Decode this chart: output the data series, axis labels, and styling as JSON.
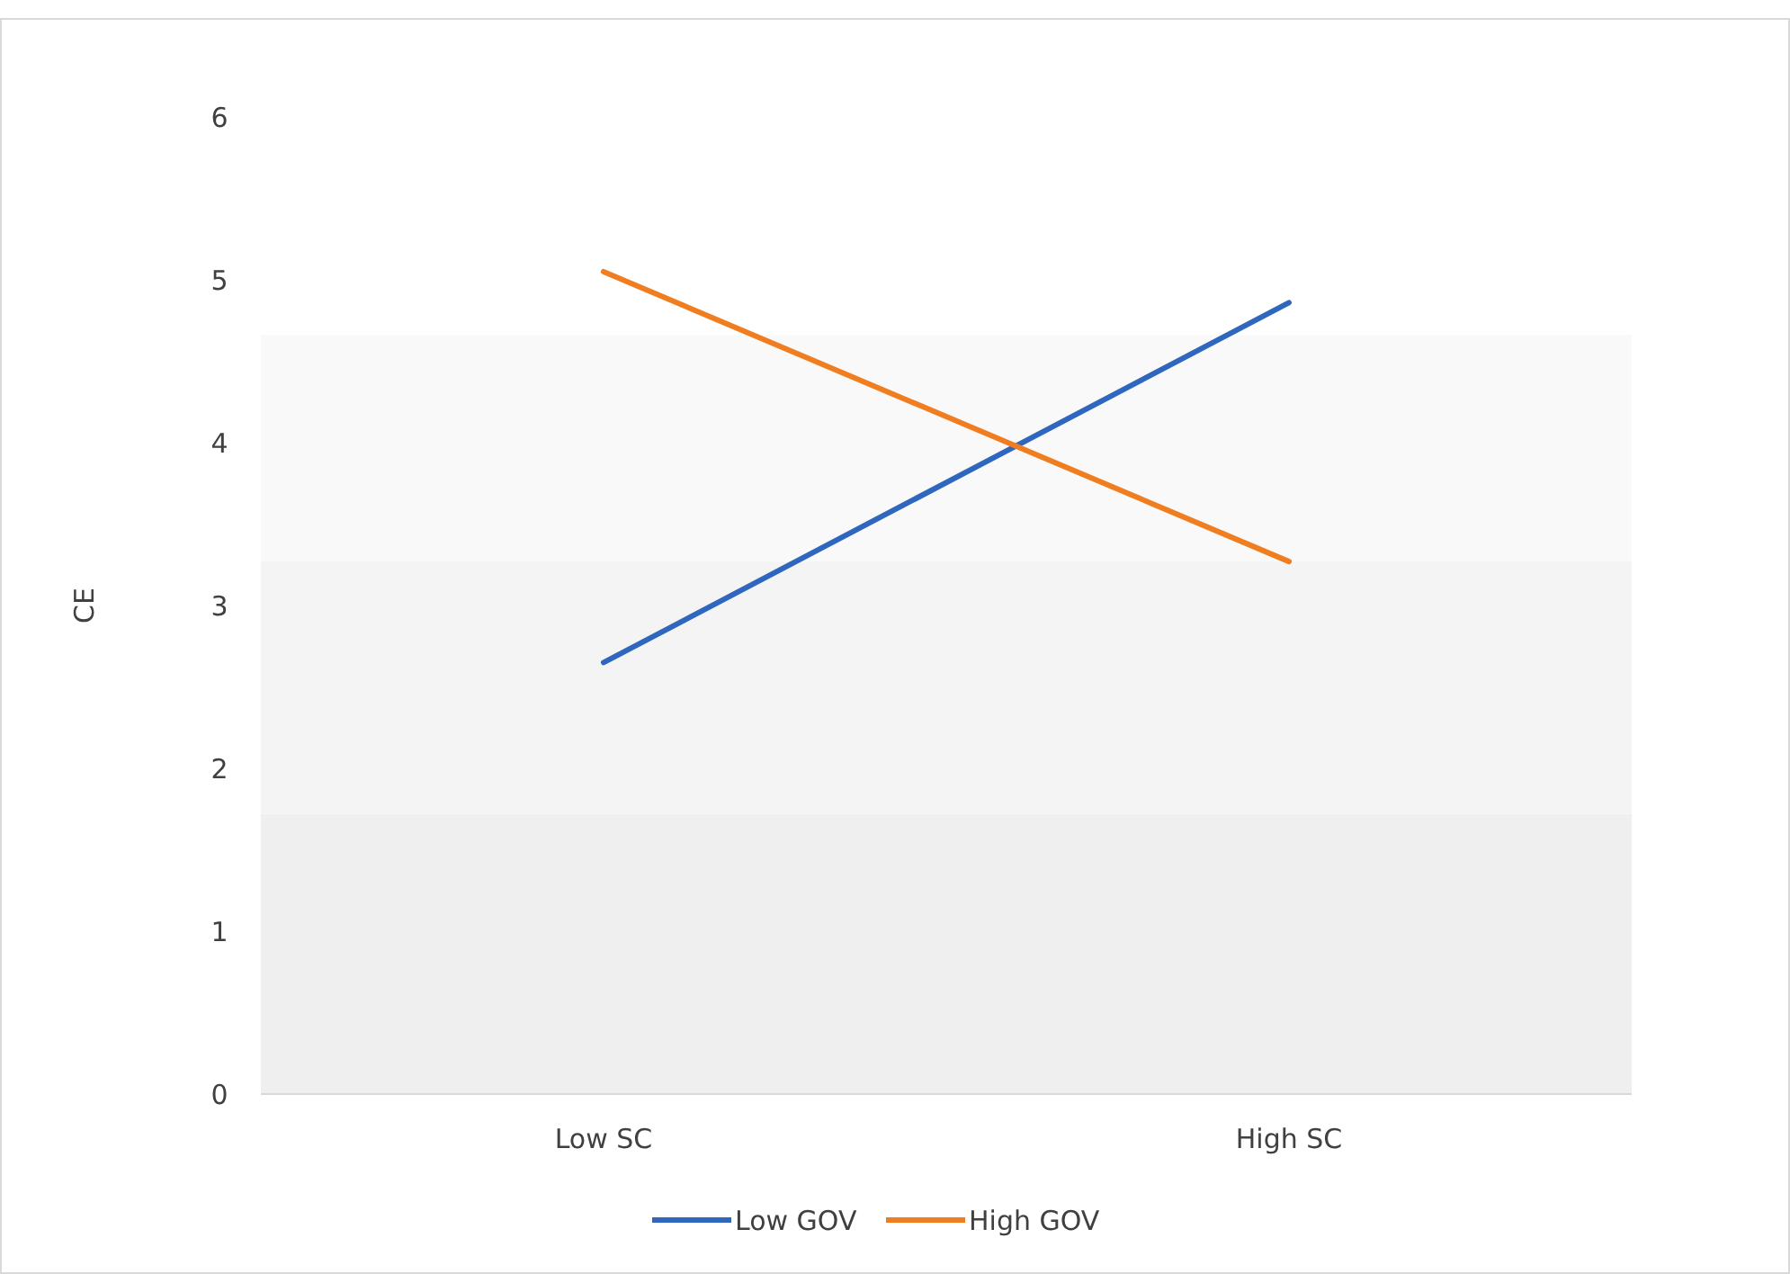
{
  "chart_data": {
    "type": "line",
    "ylabel": "CE",
    "categories": [
      "Low SC",
      "High SC"
    ],
    "series": [
      {
        "name": "Low GOV",
        "color": "#2e67bd",
        "values": [
          2.65,
          4.86
        ]
      },
      {
        "name": "High GOV",
        "color": "#f07e21",
        "values": [
          5.05,
          3.27
        ]
      }
    ],
    "ylim": [
      0,
      6
    ],
    "yticks": [
      0,
      1,
      2,
      3,
      4,
      5,
      6
    ],
    "grid": false,
    "legend": "bottom",
    "marker": "none",
    "line_style": "solid",
    "bands": [
      {
        "axis": "y",
        "from": 0,
        "to": 1.72,
        "color": "#efefef"
      },
      {
        "axis": "y",
        "from": 1.72,
        "to": 3.27,
        "color": "#f4f4f4"
      },
      {
        "axis": "y",
        "from": 3.27,
        "to": 4.66,
        "color": "#f9f9f9"
      }
    ]
  }
}
